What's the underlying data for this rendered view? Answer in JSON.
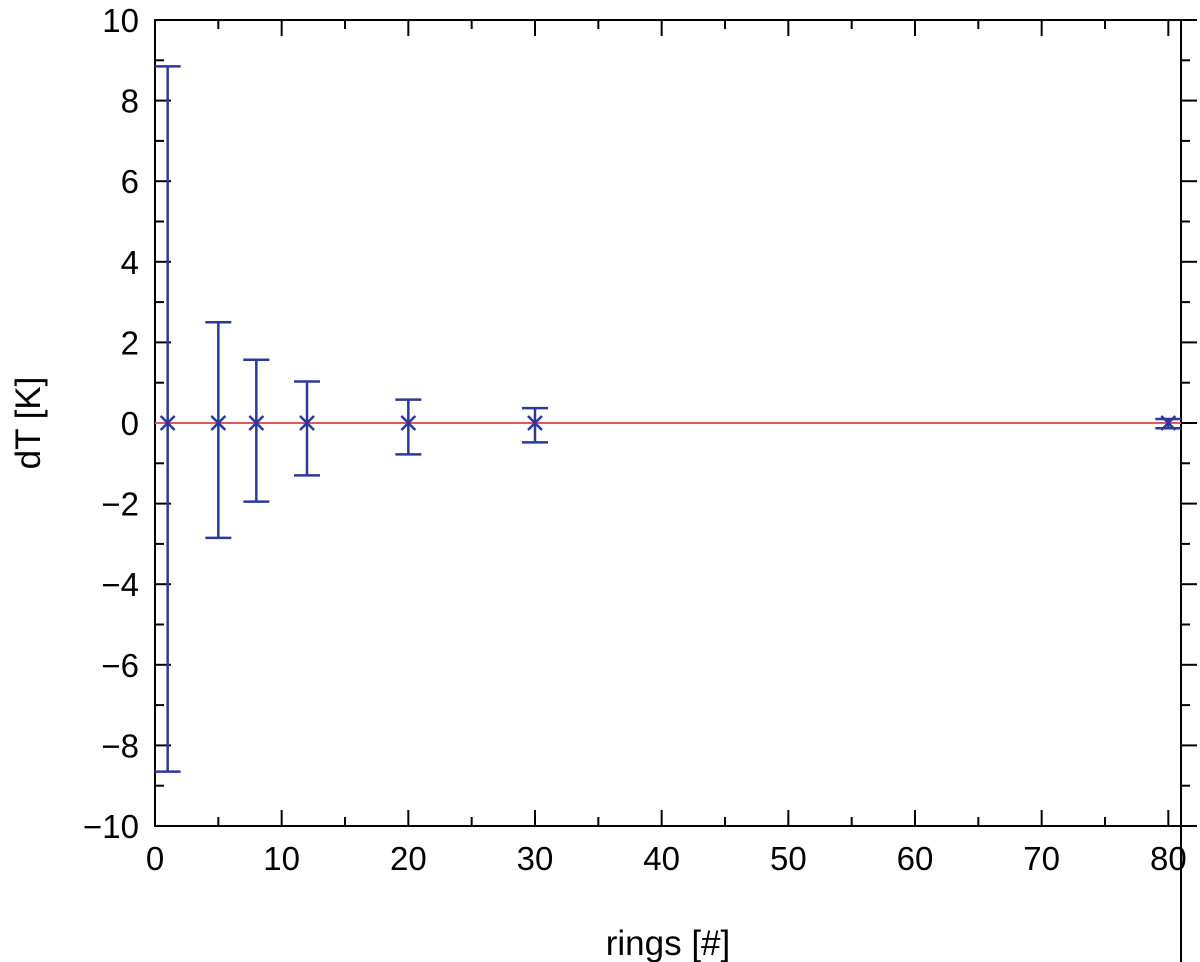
{
  "chart_data": {
    "type": "scatter",
    "title": "",
    "xlabel": "rings [#]",
    "ylabel": "dT [K]",
    "xlim": [
      0,
      81
    ],
    "ylim": [
      -10,
      10
    ],
    "xticks": [
      0,
      10,
      20,
      30,
      40,
      50,
      60,
      70,
      80
    ],
    "yticks": [
      -10,
      -8,
      -6,
      -4,
      -2,
      0,
      2,
      4,
      6,
      8,
      10
    ],
    "xtick_labels": [
      "0",
      "10",
      "20",
      "30",
      "40",
      "50",
      "60",
      "70",
      "80"
    ],
    "ytick_labels": [
      "−10",
      "−8",
      "−6",
      "−4",
      "−2",
      "0",
      "2",
      "4",
      "6",
      "8",
      "10"
    ],
    "grid": false,
    "reference_line": {
      "y": 0,
      "color": "#e05a5a"
    },
    "series": [
      {
        "color": "#2b3a99",
        "marker": "x",
        "points": [
          {
            "x": 1,
            "y": 0,
            "err_low": -8.65,
            "err_high": 8.85
          },
          {
            "x": 5,
            "y": 0,
            "err_low": -2.85,
            "err_high": 2.5
          },
          {
            "x": 8,
            "y": 0,
            "err_low": -1.95,
            "err_high": 1.57
          },
          {
            "x": 12,
            "y": 0,
            "err_low": -1.3,
            "err_high": 1.03
          },
          {
            "x": 20,
            "y": 0,
            "err_low": -0.78,
            "err_high": 0.58
          },
          {
            "x": 30,
            "y": 0,
            "err_low": -0.48,
            "err_high": 0.37
          },
          {
            "x": 80,
            "y": 0,
            "err_low": -0.13,
            "err_high": 0.1
          }
        ]
      }
    ]
  }
}
